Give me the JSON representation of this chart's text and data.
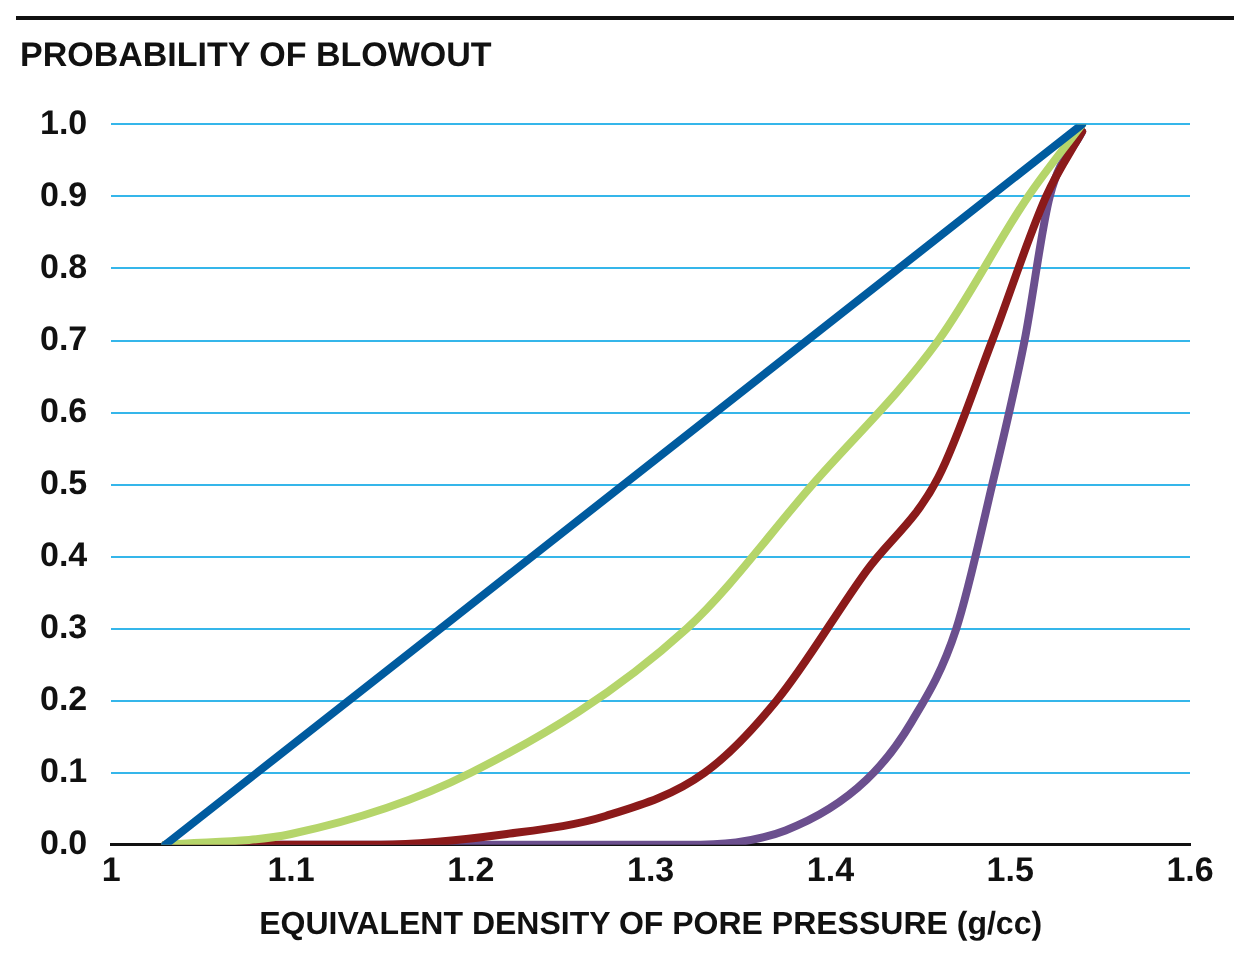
{
  "chart_data": {
    "type": "line",
    "title": "PROBABILITY OF BLOWOUT",
    "xlabel": "EQUIVALENT DENSITY OF PORE PRESSURE (g/cc)",
    "xlim": [
      1,
      1.6
    ],
    "xticks": [
      1,
      1.1,
      1.2,
      1.3,
      1.4,
      1.5,
      1.6
    ],
    "ylim": [
      0,
      1
    ],
    "yticks": [
      {
        "value": 0,
        "label": "0.0"
      },
      {
        "value": 0.1,
        "label": "0.1"
      },
      {
        "value": 0.2,
        "label": "0.2"
      },
      {
        "value": 0.3,
        "label": "0.3"
      },
      {
        "value": 0.4,
        "label": "0.4"
      },
      {
        "value": 0.5,
        "label": "0.5"
      },
      {
        "value": 0.6,
        "label": "0.6"
      },
      {
        "value": 0.7,
        "label": "0.7"
      },
      {
        "value": 0.8,
        "label": "0.8"
      },
      {
        "value": 0.9,
        "label": "0.9"
      },
      {
        "value": 1,
        "label": "1.0"
      }
    ],
    "grid": "y",
    "legend": false,
    "marker": "none",
    "line_style": "solid",
    "series": [
      {
        "color": "#005b9f",
        "x": [
          1.03,
          1.54
        ],
        "values": [
          0,
          1
        ]
      },
      {
        "color": "#b5d56a",
        "x": [
          1.03,
          1.1,
          1.2,
          1.32,
          1.39,
          1.46,
          1.51,
          1.54
        ],
        "values": [
          0,
          0.015,
          0.1,
          0.3,
          0.5,
          0.7,
          0.9,
          1
        ]
      },
      {
        "color": "#8b1a1a",
        "x": [
          1.03,
          1.15,
          1.22,
          1.275,
          1.33,
          1.37,
          1.42,
          1.46,
          1.49,
          1.52,
          1.54
        ],
        "values": [
          0,
          0,
          0.015,
          0.04,
          0.1,
          0.2,
          0.38,
          0.51,
          0.7,
          0.9,
          0.99
        ]
      },
      {
        "color": "#6b4f8e",
        "x": [
          1.03,
          1.32,
          1.375,
          1.42,
          1.445,
          1.47,
          1.49,
          1.508,
          1.522,
          1.54
        ],
        "values": [
          0,
          0,
          0.02,
          0.09,
          0.17,
          0.3,
          0.5,
          0.7,
          0.9,
          0.99
        ]
      }
    ]
  }
}
